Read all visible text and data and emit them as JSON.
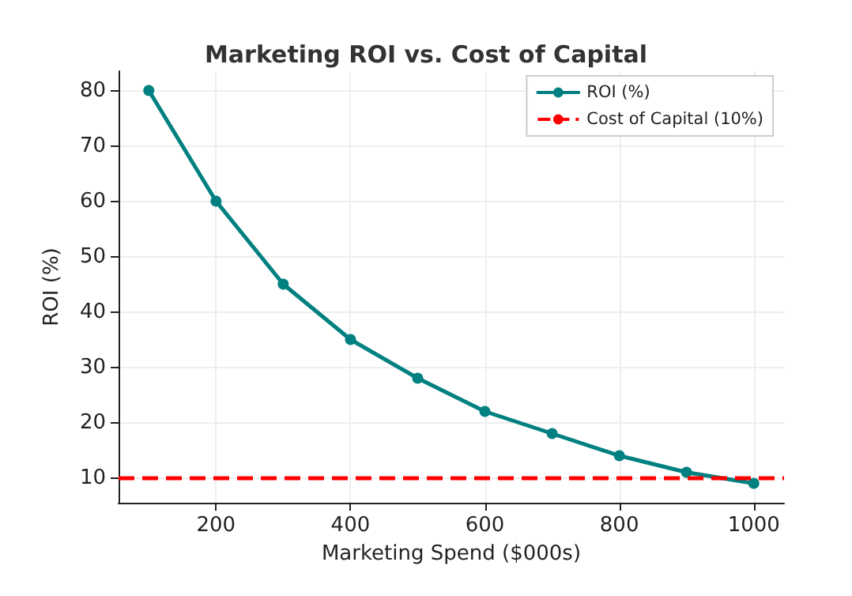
{
  "chart_data": {
    "type": "line",
    "title": "Marketing ROI vs. Cost of Capital",
    "xlabel": "Marketing Spend ($000s)",
    "ylabel": "ROI (%)",
    "x": [
      100,
      200,
      300,
      400,
      500,
      600,
      700,
      800,
      900,
      1000
    ],
    "series": [
      {
        "name": "ROI (%)",
        "color": "#008080",
        "values": [
          80,
          60,
          45,
          35,
          28,
          22,
          18,
          14,
          11,
          9
        ]
      }
    ],
    "xlim": [
      55,
      1045
    ],
    "xticks": [
      200,
      400,
      600,
      800,
      1000
    ],
    "ylim": [
      5.5,
      83.5
    ],
    "yticks": [
      10,
      20,
      30,
      40,
      50,
      60,
      70,
      80
    ],
    "ref_lines": [
      {
        "axis": "y",
        "value": 10,
        "label": "Cost of Capital (10%)",
        "color": "#ff0000",
        "line_style": "dashed"
      }
    ],
    "grid": true,
    "legend": "top right",
    "marker": "circle",
    "line_style": "solid"
  }
}
